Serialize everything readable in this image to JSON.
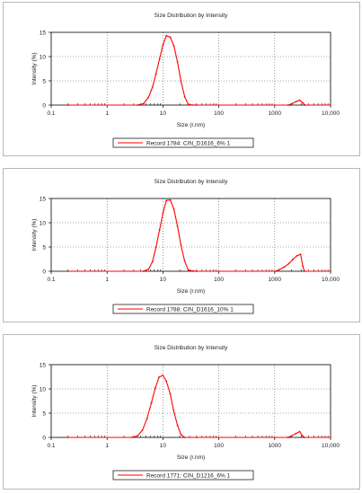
{
  "chart_data": [
    {
      "type": "line",
      "title": "Size Distribution by Intensity",
      "xlabel": "Size (r.nm)",
      "ylabel": "Intensity (%)",
      "x_scale": "log",
      "xlim": [
        0.1,
        10000
      ],
      "ylim": [
        0,
        15
      ],
      "x_ticks": [
        0.1,
        1,
        10,
        100,
        1000,
        10000
      ],
      "x_tick_labels": [
        "0.1",
        "1",
        "10",
        "100",
        "1000",
        "10,000"
      ],
      "y_ticks": [
        0,
        5,
        10,
        15
      ],
      "y_tick_labels": [
        "0",
        "5",
        "10",
        "15"
      ],
      "grid": true,
      "legend_position": "bottom",
      "series": [
        {
          "name": "Record 1784: CIN_D1616_6% 1",
          "color": "#ff0000",
          "x": [
            0.2,
            3.5,
            4.5,
            5.5,
            6.5,
            7.5,
            8.7,
            10,
            11.5,
            13.5,
            15.7,
            18.2,
            21,
            24.5,
            28.5,
            40,
            100,
            1000,
            1750,
            2050,
            2400,
            2800,
            3150,
            3500,
            10000
          ],
          "y": [
            0,
            0,
            0.3,
            1.6,
            3.7,
            6.4,
            9.5,
            12.4,
            14.3,
            14.0,
            12.2,
            8.9,
            5.0,
            1.7,
            0.1,
            0,
            0,
            0,
            0,
            0.3,
            0.7,
            1.0,
            0.5,
            0,
            0
          ]
        }
      ]
    },
    {
      "type": "line",
      "title": "Size Distribution by Intensity",
      "xlabel": "Size (r.nm)",
      "ylabel": "Intensity (%)",
      "x_scale": "log",
      "xlim": [
        0.1,
        10000
      ],
      "ylim": [
        0,
        15
      ],
      "x_ticks": [
        0.1,
        1,
        10,
        100,
        1000,
        10000
      ],
      "x_tick_labels": [
        "0.1",
        "1",
        "10",
        "100",
        "1000",
        "10,000"
      ],
      "y_ticks": [
        0,
        5,
        10,
        15
      ],
      "y_tick_labels": [
        "0",
        "5",
        "10",
        "15"
      ],
      "grid": true,
      "legend_position": "bottom",
      "series": [
        {
          "name": "Record 1788: CIN_D1616_10% 1",
          "color": "#ff0000",
          "x": [
            0.2,
            4.5,
            5.5,
            6.5,
            7.5,
            8.7,
            10,
            11.5,
            13.5,
            15.7,
            18.2,
            21,
            24.5,
            28.5,
            40,
            100,
            1000,
            1200,
            1500,
            1800,
            2100,
            2500,
            2900,
            3200,
            3400,
            10000
          ],
          "y": [
            0,
            0,
            0.4,
            2.0,
            4.9,
            8.5,
            12.0,
            14.6,
            14.7,
            12.8,
            9.3,
            5.4,
            2.1,
            0.2,
            0,
            0,
            0,
            0.3,
            0.9,
            1.6,
            2.4,
            3.2,
            3.5,
            1.0,
            0,
            0
          ]
        }
      ]
    },
    {
      "type": "line",
      "title": "Size Distribution by Intensity",
      "xlabel": "Size (r.nm)",
      "ylabel": "Intensity (%)",
      "x_scale": "log",
      "xlim": [
        0.1,
        10000
      ],
      "ylim": [
        0,
        15
      ],
      "x_ticks": [
        0.1,
        1,
        10,
        100,
        1000,
        10000
      ],
      "x_tick_labels": [
        "0.1",
        "1",
        "10",
        "100",
        "1000",
        "10,000"
      ],
      "y_ticks": [
        0,
        5,
        10,
        15
      ],
      "y_tick_labels": [
        "0",
        "5",
        "10",
        "15"
      ],
      "grid": true,
      "legend_position": "bottom",
      "series": [
        {
          "name": "Record 1771: CIN_D1216_6%  1",
          "color": "#ff0000",
          "x": [
            0.2,
            2.8,
            3.5,
            4.3,
            5.2,
            6.2,
            7.3,
            8.5,
            10,
            11.5,
            13.5,
            15.5,
            18.2,
            21,
            24.5,
            40,
            100,
            1000,
            1700,
            2000,
            2400,
            2800,
            3100,
            3400,
            10000
          ],
          "y": [
            0,
            0,
            0.3,
            1.5,
            3.9,
            7.1,
            10.2,
            12.4,
            12.8,
            11.6,
            9.0,
            5.6,
            2.5,
            0.6,
            0,
            0,
            0,
            0,
            0,
            0.3,
            0.8,
            1.2,
            0.4,
            0,
            0
          ]
        }
      ]
    }
  ]
}
